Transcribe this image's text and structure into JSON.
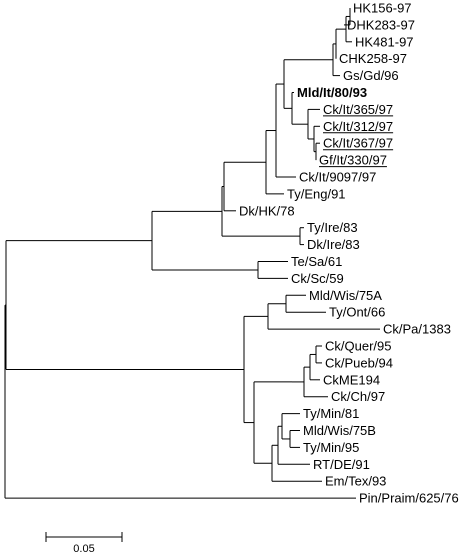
{
  "colors": {
    "line": "#000000",
    "background": "#ffffff"
  },
  "tree": {
    "leaves": [
      {
        "id": "hk156",
        "label": "HK156-97",
        "underline": false,
        "bold": false
      },
      {
        "id": "dhk283",
        "label": "DHK283-97",
        "underline": false,
        "bold": false
      },
      {
        "id": "hk481",
        "label": "HK481-97",
        "underline": false,
        "bold": false
      },
      {
        "id": "chk258",
        "label": "CHK258-97",
        "underline": false,
        "bold": false
      },
      {
        "id": "gsgd",
        "label": "Gs/Gd/96",
        "underline": false,
        "bold": false
      },
      {
        "id": "mldit",
        "label": "Mld/It/80/93",
        "underline": false,
        "bold": true
      },
      {
        "id": "ckit365",
        "label": "Ck/It/365/97",
        "underline": true,
        "bold": false
      },
      {
        "id": "ckit312",
        "label": "Ck/It/312/97",
        "underline": true,
        "bold": false
      },
      {
        "id": "ckit367",
        "label": "Ck/It/367/97",
        "underline": true,
        "bold": false
      },
      {
        "id": "gfit330",
        "label": "Gf/It/330/97",
        "underline": true,
        "bold": false
      },
      {
        "id": "ckit9097",
        "label": "Ck/It/9097/97",
        "underline": false,
        "bold": false
      },
      {
        "id": "tyeng",
        "label": "Ty/Eng/91",
        "underline": false,
        "bold": false
      },
      {
        "id": "dkhk",
        "label": "Dk/HK/78",
        "underline": false,
        "bold": false
      },
      {
        "id": "tyire",
        "label": "Ty/Ire/83",
        "underline": false,
        "bold": false
      },
      {
        "id": "dkire",
        "label": "Dk/Ire/83",
        "underline": false,
        "bold": false
      },
      {
        "id": "tesa",
        "label": "Te/Sa/61",
        "underline": false,
        "bold": false
      },
      {
        "id": "cksc",
        "label": "Ck/Sc/59",
        "underline": false,
        "bold": false
      },
      {
        "id": "mldwis75a",
        "label": "Mld/Wis/75A",
        "underline": false,
        "bold": false
      },
      {
        "id": "tyont",
        "label": "Ty/Ont/66",
        "underline": false,
        "bold": false
      },
      {
        "id": "ckpa",
        "label": "Ck/Pa/1383",
        "underline": false,
        "bold": false
      },
      {
        "id": "ckquer",
        "label": "Ck/Quer/95",
        "underline": false,
        "bold": false
      },
      {
        "id": "ckpueb",
        "label": "Ck/Pueb/94",
        "underline": false,
        "bold": false
      },
      {
        "id": "ckme",
        "label": "CkME194",
        "underline": false,
        "bold": false
      },
      {
        "id": "ckch",
        "label": "Ck/Ch/97",
        "underline": false,
        "bold": false
      },
      {
        "id": "tymin81",
        "label": "Ty/Min/81",
        "underline": false,
        "bold": false
      },
      {
        "id": "mldwis75b",
        "label": "Mld/Wis/75B",
        "underline": false,
        "bold": false
      },
      {
        "id": "tymin95",
        "label": "Ty/Min/95",
        "underline": false,
        "bold": false
      },
      {
        "id": "rtde",
        "label": "RT/DE/91",
        "underline": false,
        "bold": false
      },
      {
        "id": "emtex",
        "label": "Em/Tex/93",
        "underline": false,
        "bold": false
      },
      {
        "id": "pinpraim",
        "label": "Pin/Praim/625/76",
        "underline": false,
        "bold": false
      }
    ],
    "scale_bar_label": "0.05"
  }
}
